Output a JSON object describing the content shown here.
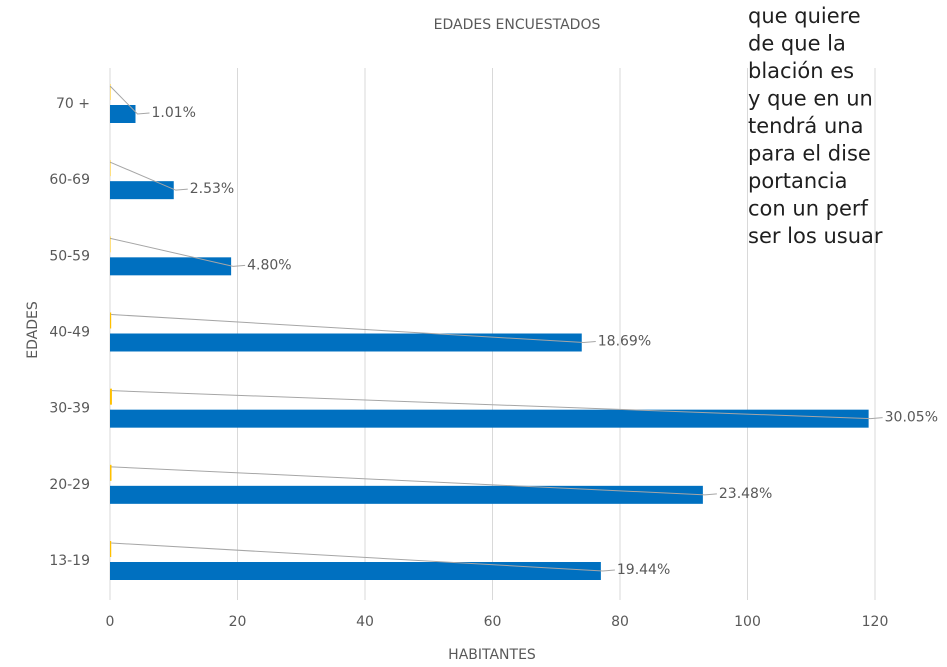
{
  "chart_data": {
    "type": "bar",
    "orientation": "horizontal",
    "title": "EDADES ENCUESTADOS",
    "x_label": "HABITANTES",
    "y_label": "EDADES",
    "categories": [
      "13-19",
      "20-29",
      "30-39",
      "40-49",
      "50-59",
      "60-69",
      "70 +"
    ],
    "series": [
      {
        "color": "#0070c0",
        "values": [
          77,
          93,
          119,
          74,
          19,
          10,
          4
        ]
      },
      {
        "color": "#ffc000",
        "values": [
          0.1944,
          0.2348,
          0.3005,
          0.1869,
          0.048,
          0.0253,
          0.0101
        ],
        "value_labels": [
          "19.44%",
          "23.48%",
          "30.05%",
          "18.69%",
          "4.80%",
          "2.53%",
          "1.01%"
        ]
      }
    ],
    "xlim": [
      0,
      120
    ],
    "xticks": [
      0,
      20,
      40,
      60,
      80,
      100,
      120
    ],
    "grid": true
  },
  "overlay_text": [
    "que quiere",
    "de que la",
    "blación es",
    "y que en un",
    "tendrá una",
    "para el dise",
    "portancia",
    "con un perf",
    "ser los usuar"
  ]
}
